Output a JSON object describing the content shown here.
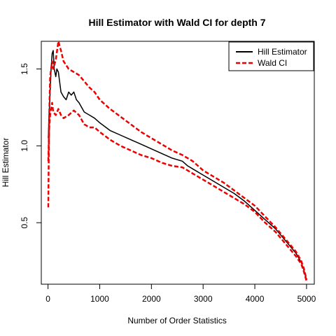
{
  "chart_data": {
    "type": "line",
    "title": "Hill Estimator with Wald CI for depth 7",
    "xlabel": "Number of Order Statistics",
    "ylabel": "Hill Estimator",
    "xlim": [
      -130,
      5150
    ],
    "ylim": [
      0.1,
      1.68
    ],
    "x_ticks": [
      0,
      1000,
      2000,
      3000,
      4000,
      5000
    ],
    "y_ticks": [
      0.5,
      1.0,
      1.5
    ],
    "x_tick_labels": [
      "0",
      "1000",
      "2000",
      "3000",
      "4000",
      "5000"
    ],
    "y_tick_labels": [
      "0.5",
      "1.0",
      "1.5"
    ],
    "legend_position": "top-right",
    "grid": false,
    "series": [
      {
        "name": "Hill Estimator",
        "color": "#000000",
        "style": "solid",
        "x": [
          5,
          20,
          40,
          60,
          80,
          100,
          120,
          150,
          170,
          200,
          250,
          300,
          350,
          400,
          450,
          500,
          550,
          600,
          650,
          700,
          800,
          900,
          1000,
          1200,
          1400,
          1600,
          1800,
          2000,
          2200,
          2400,
          2600,
          2700,
          2800,
          3000,
          3200,
          3400,
          3600,
          3800,
          4000,
          4200,
          4400,
          4500,
          4600,
          4700,
          4800,
          4900,
          4950,
          5000
        ],
        "y": [
          1.05,
          1.2,
          1.35,
          1.5,
          1.6,
          1.62,
          1.5,
          1.45,
          1.5,
          1.48,
          1.35,
          1.32,
          1.3,
          1.35,
          1.33,
          1.35,
          1.3,
          1.28,
          1.25,
          1.22,
          1.2,
          1.18,
          1.15,
          1.1,
          1.07,
          1.04,
          1.01,
          0.98,
          0.95,
          0.92,
          0.9,
          0.87,
          0.85,
          0.81,
          0.77,
          0.73,
          0.69,
          0.64,
          0.58,
          0.52,
          0.46,
          0.42,
          0.38,
          0.34,
          0.3,
          0.24,
          0.19,
          0.13
        ]
      },
      {
        "name": "Wald CI",
        "color": "#ee0000",
        "style": "dashed",
        "x": [
          5,
          20,
          40,
          60,
          80,
          100,
          150,
          200,
          250,
          300,
          400,
          500,
          600,
          700,
          800,
          900,
          1000,
          1200,
          1400,
          1600,
          1800,
          2000,
          2200,
          2400,
          2600,
          2800,
          3000,
          3200,
          3400,
          3600,
          3800,
          4000,
          4200,
          4400,
          4500,
          4600,
          4700,
          4800,
          4900,
          4950,
          5000
        ],
        "y": [
          0.6,
          1.15,
          1.45,
          1.5,
          1.55,
          1.5,
          1.56,
          1.68,
          1.62,
          1.55,
          1.5,
          1.48,
          1.46,
          1.42,
          1.38,
          1.35,
          1.3,
          1.24,
          1.19,
          1.14,
          1.09,
          1.05,
          1.01,
          0.97,
          0.94,
          0.9,
          0.84,
          0.8,
          0.76,
          0.71,
          0.66,
          0.61,
          0.54,
          0.47,
          0.43,
          0.39,
          0.35,
          0.31,
          0.25,
          0.2,
          0.13
        ]
      },
      {
        "name": "",
        "color": "#ee0000",
        "style": "dashed",
        "x": [
          5,
          20,
          40,
          60,
          80,
          100,
          150,
          200,
          250,
          300,
          400,
          500,
          600,
          700,
          800,
          900,
          1000,
          1200,
          1400,
          1600,
          1800,
          2000,
          2200,
          2400,
          2600,
          2800,
          3000,
          3200,
          3400,
          3600,
          3800,
          4000,
          4200,
          4400,
          4500,
          4600,
          4700,
          4800,
          4900,
          4950,
          5000
        ],
        "y": [
          0.9,
          1.1,
          1.2,
          1.24,
          1.28,
          1.22,
          1.2,
          1.24,
          1.2,
          1.18,
          1.2,
          1.23,
          1.2,
          1.14,
          1.12,
          1.12,
          1.09,
          1.04,
          1.0,
          0.97,
          0.94,
          0.92,
          0.89,
          0.87,
          0.86,
          0.82,
          0.78,
          0.74,
          0.7,
          0.66,
          0.62,
          0.57,
          0.5,
          0.44,
          0.4,
          0.36,
          0.32,
          0.28,
          0.23,
          0.18,
          0.12
        ]
      }
    ]
  }
}
